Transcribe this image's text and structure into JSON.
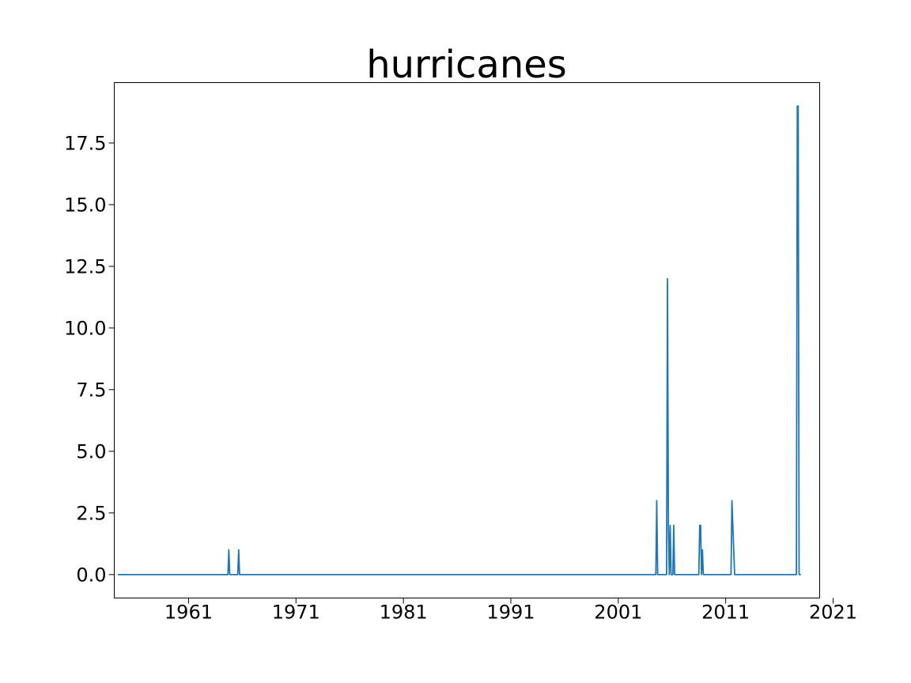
{
  "chart_data": {
    "type": "line",
    "title": "hurricanes",
    "xlabel": "",
    "ylabel": "",
    "x_axis_type": "date",
    "xlim": [
      "1954-02-01",
      "2019-10-01"
    ],
    "ylim": [
      -0.95,
      19.95
    ],
    "x_ticks": [
      "1961",
      "1971",
      "1981",
      "1991",
      "2001",
      "2011",
      "2021"
    ],
    "y_ticks": [
      "0.0",
      "2.5",
      "5.0",
      "7.5",
      "10.0",
      "12.5",
      "15.0",
      "17.5"
    ],
    "grid": false,
    "legend": "none",
    "series": [
      {
        "color": "#1f77b4",
        "points": [
          [
            "1954-06-01",
            0
          ],
          [
            "1964-09-01",
            0
          ],
          [
            "1964-10-01",
            1
          ],
          [
            "1964-11-01",
            0
          ],
          [
            "1965-08-01",
            0
          ],
          [
            "1965-09-01",
            1
          ],
          [
            "1965-10-01",
            0
          ],
          [
            "2004-07-01",
            0
          ],
          [
            "2004-08-01",
            3
          ],
          [
            "2004-09-01",
            0
          ],
          [
            "2005-07-01",
            0
          ],
          [
            "2005-08-01",
            12
          ],
          [
            "2005-09-01",
            2
          ],
          [
            "2005-10-01",
            0
          ],
          [
            "2005-11-01",
            2
          ],
          [
            "2005-12-01",
            0
          ],
          [
            "2006-02-01",
            0
          ],
          [
            "2006-03-01",
            2
          ],
          [
            "2006-04-01",
            0
          ],
          [
            "2008-07-01",
            0
          ],
          [
            "2008-08-01",
            2
          ],
          [
            "2008-09-01",
            2
          ],
          [
            "2008-10-01",
            0
          ],
          [
            "2008-11-01",
            1
          ],
          [
            "2008-12-01",
            0
          ],
          [
            "2011-07-01",
            0
          ],
          [
            "2011-08-01",
            3
          ],
          [
            "2011-10-01",
            1
          ],
          [
            "2011-11-01",
            0
          ],
          [
            "2017-08-01",
            0
          ],
          [
            "2017-09-01",
            19
          ],
          [
            "2017-10-01",
            19
          ],
          [
            "2017-11-01",
            0
          ],
          [
            "2018-01-01",
            0
          ]
        ]
      }
    ]
  }
}
